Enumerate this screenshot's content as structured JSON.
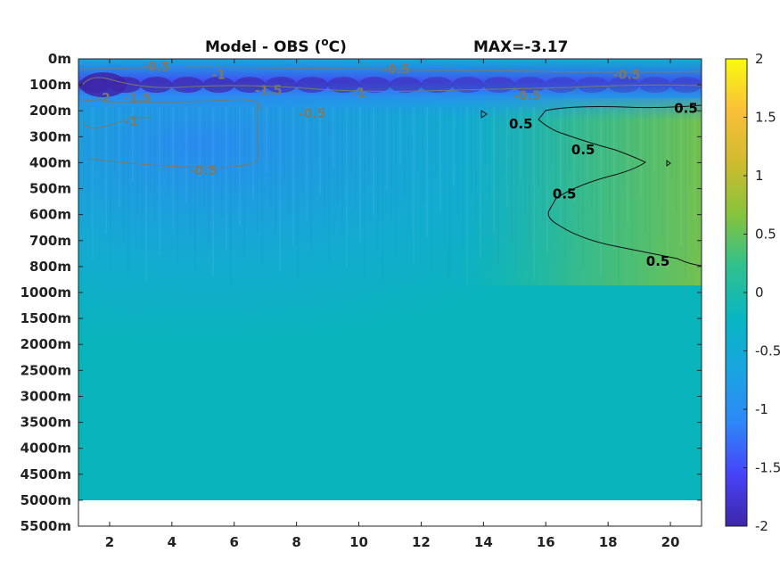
{
  "chart_data": {
    "type": "heatmap",
    "title_left": "Model - OBS (",
    "title_unit": "o",
    "title_unit_suffix": "C)",
    "title_right": "MAX=-3.17",
    "xlabel": "",
    "ylabel": "",
    "x_ticks": [
      "2",
      "4",
      "6",
      "8",
      "10",
      "12",
      "14",
      "16",
      "18",
      "20"
    ],
    "x_tick_values": [
      2,
      4,
      6,
      8,
      10,
      12,
      14,
      16,
      18,
      20
    ],
    "xlim": [
      1,
      21
    ],
    "y_ticks": [
      "0m",
      "100m",
      "200m",
      "300m",
      "400m",
      "500m",
      "600m",
      "700m",
      "800m",
      "1000m",
      "1500m",
      "2000m",
      "2500m",
      "3000m",
      "3500m",
      "4000m",
      "4500m",
      "5000m",
      "5500m"
    ],
    "y_levels": [
      0,
      100,
      200,
      300,
      400,
      500,
      600,
      700,
      800,
      1000,
      1500,
      2000,
      2500,
      3000,
      3500,
      4000,
      4500,
      5000,
      5500
    ],
    "data_bottom_depth": 5000,
    "colorbar": {
      "ticks": [
        "2",
        "1.5",
        "1",
        "0.5",
        "0",
        "-0.5",
        "-1",
        "-1.5",
        "-2"
      ],
      "tick_values": [
        2,
        1.5,
        1,
        0.5,
        0,
        -0.5,
        -1,
        -1.5,
        -2
      ],
      "range": [
        -2,
        2
      ],
      "colormap": "parula",
      "stops": [
        "#3e26a8",
        "#4743f8",
        "#2e87f7",
        "#1aa4e0",
        "#08b6c2",
        "#30c08e",
        "#86c33c",
        "#cfbb2f",
        "#f9bf3a",
        "#f9fb0e"
      ]
    },
    "contour_labels": [
      {
        "text": "-0.5",
        "x": 3.5,
        "depth": 30,
        "style": "grey"
      },
      {
        "text": "-1",
        "x": 5.5,
        "depth": 60,
        "style": "grey"
      },
      {
        "text": "-0.5",
        "x": 11.2,
        "depth": 40,
        "style": "grey"
      },
      {
        "text": "-0.5",
        "x": 18.6,
        "depth": 60,
        "style": "grey"
      },
      {
        "text": "-2",
        "x": 1.8,
        "depth": 150,
        "style": "grey"
      },
      {
        "text": "-1.5",
        "x": 2.9,
        "depth": 150,
        "style": "grey"
      },
      {
        "text": "-1.5",
        "x": 7.1,
        "depth": 120,
        "style": "grey"
      },
      {
        "text": "-1",
        "x": 10.0,
        "depth": 130,
        "style": "grey"
      },
      {
        "text": "-0.5",
        "x": 15.4,
        "depth": 140,
        "style": "grey"
      },
      {
        "text": "-1",
        "x": 2.7,
        "depth": 240,
        "style": "grey"
      },
      {
        "text": "-0.5",
        "x": 8.5,
        "depth": 210,
        "style": "grey"
      },
      {
        "text": "-0.5",
        "x": 5.0,
        "depth": 430,
        "style": "grey"
      },
      {
        "text": "0.5",
        "x": 20.5,
        "depth": 190,
        "style": "black"
      },
      {
        "text": "0.5",
        "x": 15.2,
        "depth": 250,
        "style": "black"
      },
      {
        "text": "0.5",
        "x": 17.2,
        "depth": 350,
        "style": "black"
      },
      {
        "text": "0.5",
        "x": 16.6,
        "depth": 520,
        "style": "black"
      },
      {
        "text": "0.5",
        "x": 19.6,
        "depth": 780,
        "style": "black"
      }
    ]
  }
}
